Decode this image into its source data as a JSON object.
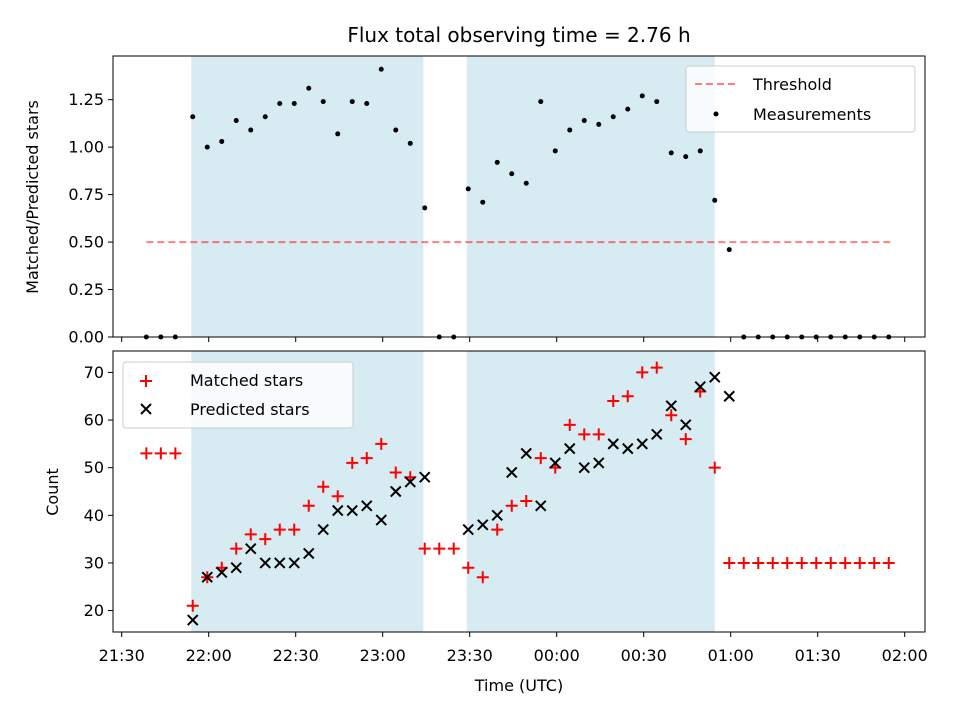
{
  "chart_data": {
    "title": "Flux total observing time = 2.76 h",
    "xlabel": "Time (UTC)",
    "x_ticks": [
      "21:30",
      "22:00",
      "22:30",
      "23:00",
      "23:30",
      "00:00",
      "00:30",
      "01:00",
      "01:30",
      "02:00"
    ],
    "x_unit": "minutes after 21:30 UTC",
    "xlim_minutes": [
      -3,
      277
    ],
    "shaded_intervals_minutes": [
      [
        24,
        104
      ],
      [
        119,
        204.5
      ]
    ],
    "colors": {
      "shade": "#add8e6",
      "threshold": "#ff0000",
      "measurements": "#000000",
      "matched": "#ff0000",
      "predicted": "#000000"
    },
    "panels": [
      {
        "id": "ratio",
        "type": "scatter",
        "ylabel": "Matched/Predicted stars",
        "ylim": [
          0,
          1.48
        ],
        "y_ticks": [
          "0.00",
          "0.25",
          "0.50",
          "0.75",
          "1.00",
          "1.25"
        ],
        "legend_position": "top-right",
        "threshold": {
          "name": "Threshold",
          "value": 0.5,
          "x_start": 8.5,
          "x_end": 265
        },
        "measurements": {
          "name": "Measurements",
          "x": [
            8.5,
            13.5,
            18.5,
            24.5,
            29.5,
            34.5,
            39.5,
            44.5,
            49.5,
            54.5,
            59.5,
            64.5,
            69.5,
            74.5,
            79.5,
            84.5,
            89.5,
            94.5,
            99.5,
            104.5,
            109.5,
            114.5,
            119.5,
            124.5,
            129.5,
            134.5,
            139.5,
            144.5,
            149.5,
            154.5,
            159.5,
            164.5,
            169.5,
            174.5,
            179.5,
            184.5,
            189.5,
            194.5,
            199.5,
            204.5,
            209.5,
            214.5,
            219.5,
            224.5,
            229.5,
            234.5,
            239.5,
            244.5,
            249.5,
            254.5,
            259.5,
            264.5
          ],
          "y": [
            0,
            0,
            0,
            1.16,
            1.0,
            1.03,
            1.14,
            1.09,
            1.16,
            1.23,
            1.23,
            1.31,
            1.24,
            1.07,
            1.24,
            1.23,
            1.41,
            1.09,
            1.02,
            0.68,
            0,
            0,
            0.78,
            0.71,
            0.92,
            0.86,
            0.81,
            1.24,
            0.98,
            1.09,
            1.14,
            1.12,
            1.16,
            1.2,
            1.27,
            1.24,
            0.97,
            0.95,
            0.98,
            0.72,
            0.46,
            0,
            0,
            0,
            0,
            0,
            0,
            0,
            0,
            0,
            0,
            0
          ]
        }
      },
      {
        "id": "count",
        "type": "scatter",
        "ylabel": "Count",
        "ylim": [
          15.5,
          74.5
        ],
        "y_ticks": [
          "20",
          "30",
          "40",
          "50",
          "60",
          "70"
        ],
        "legend_position": "top-left",
        "series": [
          {
            "name": "Matched stars",
            "marker": "plus",
            "x": [
              8.5,
              13.5,
              18.5,
              24.5,
              29.5,
              34.5,
              39.5,
              44.5,
              49.5,
              54.5,
              59.5,
              64.5,
              69.5,
              74.5,
              79.5,
              84.5,
              89.5,
              94.5,
              99.5,
              104.5,
              109.5,
              114.5,
              119.5,
              124.5,
              129.5,
              134.5,
              139.5,
              144.5,
              149.5,
              154.5,
              159.5,
              164.5,
              169.5,
              174.5,
              179.5,
              184.5,
              189.5,
              194.5,
              199.5,
              204.5,
              209.5,
              214.5,
              219.5,
              224.5,
              229.5,
              234.5,
              239.5,
              244.5,
              249.5,
              254.5,
              259.5,
              264.5
            ],
            "y": [
              53,
              53,
              53,
              21,
              27,
              29,
              33,
              36,
              35,
              37,
              37,
              42,
              46,
              44,
              51,
              52,
              55,
              49,
              48,
              33,
              33,
              33,
              29,
              27,
              37,
              42,
              43,
              52,
              50,
              59,
              57,
              57,
              64,
              65,
              70,
              71,
              61,
              56,
              66,
              50,
              30,
              30,
              30,
              30,
              30,
              30,
              30,
              30,
              30,
              30,
              30,
              30
            ]
          },
          {
            "name": "Predicted stars",
            "marker": "x",
            "x": [
              24.5,
              29.5,
              34.5,
              39.5,
              44.5,
              49.5,
              54.5,
              59.5,
              64.5,
              69.5,
              74.5,
              79.5,
              84.5,
              89.5,
              94.5,
              99.5,
              104.5,
              119.5,
              124.5,
              129.5,
              134.5,
              139.5,
              144.5,
              149.5,
              154.5,
              159.5,
              164.5,
              169.5,
              174.5,
              179.5,
              184.5,
              189.5,
              194.5,
              199.5,
              204.5,
              209.5
            ],
            "y": [
              18,
              27,
              28,
              29,
              33,
              30,
              30,
              30,
              32,
              37,
              41,
              41,
              42,
              39,
              45,
              47,
              48,
              37,
              38,
              40,
              49,
              53,
              42,
              51,
              54,
              50,
              51,
              55,
              54,
              55,
              57,
              63,
              59,
              67,
              69,
              65
            ]
          }
        ]
      }
    ]
  }
}
